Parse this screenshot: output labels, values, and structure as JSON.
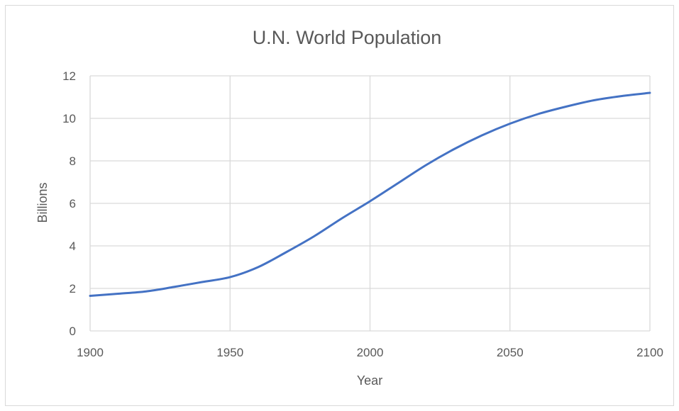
{
  "chart_data": {
    "type": "line",
    "title": "U.N. World Population",
    "xlabel": "Year",
    "ylabel": "Billions",
    "xlim": [
      1900,
      2100
    ],
    "ylim": [
      0,
      12
    ],
    "x_ticks": [
      1900,
      1950,
      2000,
      2050,
      2100
    ],
    "y_ticks": [
      0,
      2,
      4,
      6,
      8,
      10,
      12
    ],
    "grid": true,
    "legend": "none",
    "series": [
      {
        "color": "#4472c4",
        "x": [
          1900,
          1910,
          1920,
          1930,
          1940,
          1950,
          1960,
          1970,
          1980,
          1990,
          2000,
          2010,
          2020,
          2030,
          2040,
          2050,
          2060,
          2070,
          2080,
          2090,
          2100
        ],
        "y": [
          1.65,
          1.75,
          1.86,
          2.07,
          2.3,
          2.53,
          3.0,
          3.7,
          4.45,
          5.3,
          6.1,
          6.95,
          7.8,
          8.55,
          9.2,
          9.75,
          10.2,
          10.55,
          10.85,
          11.05,
          11.2
        ]
      }
    ]
  }
}
